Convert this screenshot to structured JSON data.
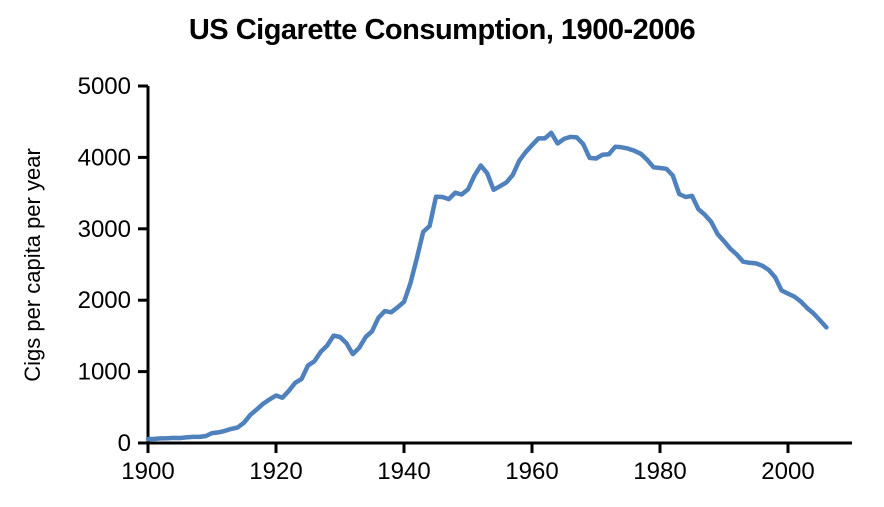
{
  "chart_data": {
    "type": "line",
    "title": "US Cigarette Consumption, 1900-2006",
    "xlabel": "",
    "ylabel": "Cigs per capita per year",
    "series_name": "Cigarettes per capita per year",
    "xlim": [
      1900,
      2010
    ],
    "ylim": [
      0,
      5000
    ],
    "x_ticks": [
      1900,
      1920,
      1940,
      1960,
      1980,
      2000
    ],
    "y_ticks": [
      0,
      1000,
      2000,
      3000,
      4000,
      5000
    ],
    "grid": false,
    "legend": false,
    "line_color": "#4F81BD",
    "axis_color": "#000000",
    "x": [
      1900,
      1901,
      1902,
      1903,
      1904,
      1905,
      1906,
      1907,
      1908,
      1909,
      1910,
      1911,
      1912,
      1913,
      1914,
      1915,
      1916,
      1917,
      1918,
      1919,
      1920,
      1921,
      1922,
      1923,
      1924,
      1925,
      1926,
      1927,
      1928,
      1929,
      1930,
      1931,
      1932,
      1933,
      1934,
      1935,
      1936,
      1937,
      1938,
      1939,
      1940,
      1941,
      1942,
      1943,
      1944,
      1945,
      1946,
      1947,
      1948,
      1949,
      1950,
      1951,
      1952,
      1953,
      1954,
      1955,
      1956,
      1957,
      1958,
      1959,
      1960,
      1961,
      1962,
      1963,
      1964,
      1965,
      1966,
      1967,
      1968,
      1969,
      1970,
      1971,
      1972,
      1973,
      1974,
      1975,
      1976,
      1977,
      1978,
      1979,
      1980,
      1981,
      1982,
      1983,
      1984,
      1985,
      1986,
      1987,
      1988,
      1989,
      1990,
      1991,
      1992,
      1993,
      1994,
      1995,
      1996,
      1997,
      1998,
      1999,
      2000,
      2001,
      2002,
      2003,
      2004,
      2005,
      2006
    ],
    "values": [
      54,
      58,
      64,
      66,
      72,
      70,
      79,
      86,
      86,
      97,
      138,
      148,
      169,
      197,
      217,
      285,
      395,
      470,
      551,
      611,
      665,
      635,
      731,
      843,
      898,
      1085,
      1145,
      1279,
      1366,
      1504,
      1485,
      1399,
      1245,
      1334,
      1483,
      1564,
      1754,
      1847,
      1830,
      1900,
      1976,
      2236,
      2585,
      2956,
      3039,
      3449,
      3446,
      3416,
      3505,
      3480,
      3552,
      3744,
      3886,
      3778,
      3546,
      3597,
      3650,
      3755,
      3953,
      4073,
      4171,
      4266,
      4266,
      4345,
      4194,
      4259,
      4287,
      4280,
      4186,
      3993,
      3985,
      4037,
      4043,
      4148,
      4141,
      4123,
      4092,
      4051,
      3967,
      3861,
      3851,
      3840,
      3746,
      3488,
      3446,
      3461,
      3274,
      3197,
      3096,
      2926,
      2827,
      2720,
      2640,
      2539,
      2524,
      2515,
      2482,
      2423,
      2320,
      2136,
      2092,
      2051,
      1982,
      1890,
      1814,
      1717,
      1619
    ]
  }
}
